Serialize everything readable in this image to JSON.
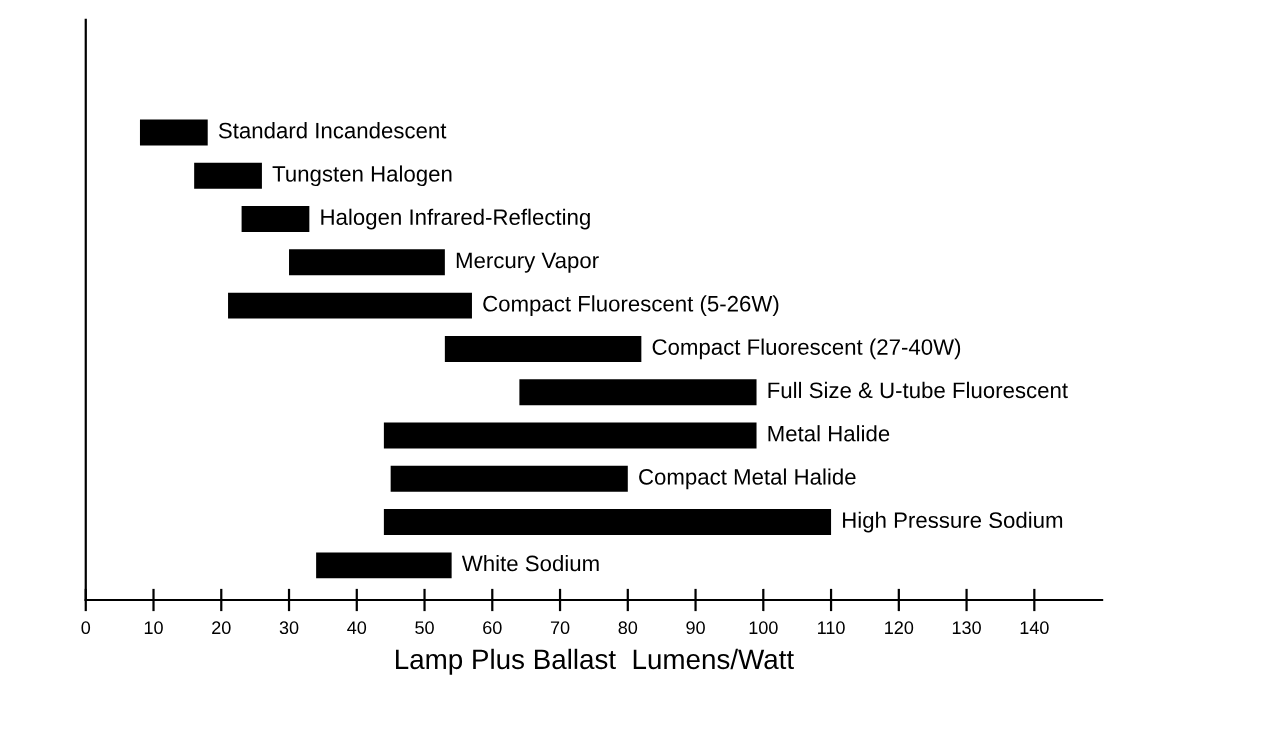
{
  "chart_data": {
    "type": "bar",
    "orientation": "horizontal",
    "xlabel": "Lamp Plus Ballast  Lumens/Watt",
    "categories": [
      "Standard Incandescent",
      "Tungsten Halogen",
      "Halogen Infrared-Reflecting",
      "Mercury Vapor",
      "Compact Fluorescent (5-26W)",
      "Compact Fluorescent (27-40W)",
      "Full Size & U-tube Fluorescent",
      "Metal Halide",
      "Compact Metal Halide",
      "High Pressure Sodium",
      "White Sodium"
    ],
    "base": [
      8,
      16,
      23,
      30,
      21,
      53,
      64,
      44,
      45,
      44,
      34
    ],
    "values": [
      10,
      10,
      10,
      23,
      36,
      29,
      35,
      55,
      35,
      66,
      20
    ],
    "color": "#000000",
    "xlim": [
      0,
      150
    ],
    "xticks": [
      0,
      10,
      20,
      30,
      40,
      50,
      60,
      70,
      80,
      90,
      100,
      110,
      120,
      130,
      140
    ],
    "grid": false
  }
}
